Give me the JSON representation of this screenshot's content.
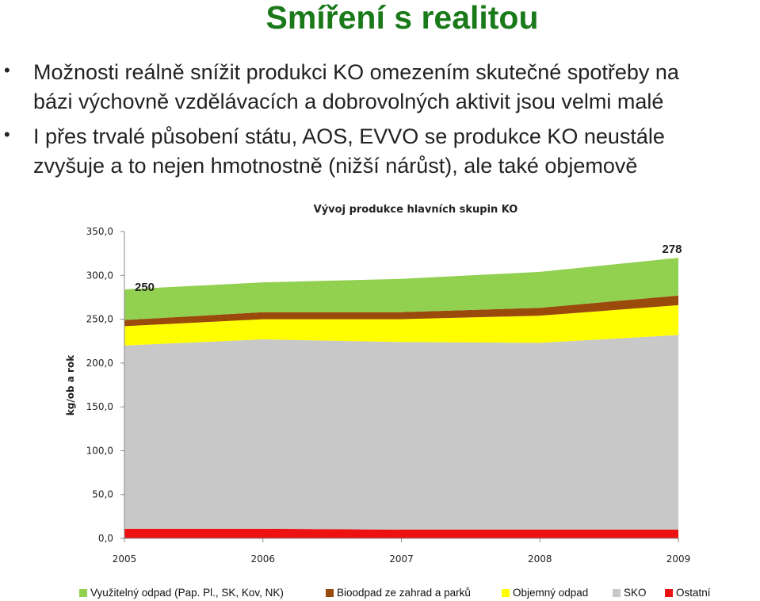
{
  "slide": {
    "title": "Smíření s realitou",
    "bullets": [
      {
        "lines": [
          "Možnosti reálně snížit produkci KO omezením skutečné spotřeby na",
          "bázi výchovně vzdělávacích a dobrovolných aktivit jsou velmi malé"
        ]
      },
      {
        "lines": [
          "I přes trvalé působení státu, AOS, EVVO se produkce KO neustále",
          "zvyšuje a to nejen hmotnostně (nižší nárůst), ale také objemově"
        ]
      }
    ],
    "bullet_symbol": "•"
  },
  "chart_data": {
    "type": "area",
    "stacked": true,
    "title": "Vývoj produkce hlavních skupin KO",
    "xlabel": "",
    "ylabel": "kg/ob a rok",
    "x": [
      "2005",
      "2006",
      "2007",
      "2008",
      "2009"
    ],
    "ylim": [
      0,
      350
    ],
    "yticks": [
      "0,0",
      "50,0",
      "100,0",
      "150,0",
      "200,0",
      "250,0",
      "300,0",
      "350,0"
    ],
    "grid": false,
    "legend_position": "bottom",
    "series": [
      {
        "name": "Ostatní",
        "color": "#ee1111",
        "values": [
          11,
          11,
          10,
          10,
          10
        ]
      },
      {
        "name": "SKO",
        "color": "#c8c8c8",
        "values": [
          209,
          216,
          214,
          213,
          222
        ]
      },
      {
        "name": "Objemný odpad",
        "color": "#ffff00",
        "values": [
          22,
          23,
          26,
          31,
          34
        ]
      },
      {
        "name": "Bioodpad ze zahrad a parků",
        "color": "#9a4a0a",
        "values": [
          7,
          8,
          8,
          9,
          11
        ]
      },
      {
        "name": "Využitelný odpad (Pap. Pl., SK, Kov, NK)",
        "color": "#92d050",
        "values": [
          35,
          34,
          38,
          41,
          43
        ]
      }
    ],
    "annotations": [
      {
        "text": "250",
        "x": "2005"
      },
      {
        "text": "278",
        "x": "2009"
      }
    ],
    "legend_order": [
      "Využitelný odpad (Pap. Pl., SK, Kov, NK)",
      "Bioodpad ze zahrad a parků",
      "Objemný odpad",
      "SKO",
      "Ostatní"
    ]
  }
}
